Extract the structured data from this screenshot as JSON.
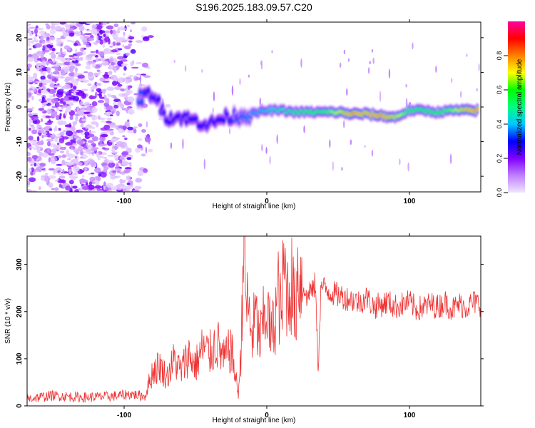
{
  "title": "S196.2025.183.09.57.C20",
  "chart_data": [
    {
      "type": "heatmap",
      "xlabel": "Height of straight line (km)",
      "ylabel": "Frequency (Hz)",
      "xlim": [
        -168,
        150
      ],
      "ylim": [
        -24.5,
        24.5
      ],
      "xticks": [
        -100,
        0,
        100
      ],
      "yticks": [
        -20,
        -10,
        0,
        10,
        20
      ],
      "colorbar": {
        "label": "Normalized spectral amplitude",
        "range": [
          0,
          1
        ],
        "ticks": [
          "0.0",
          "0.2",
          "0.4",
          "0.6",
          "0.8"
        ],
        "colors": [
          "#f0e6ff",
          "#c080ff",
          "#8000ff",
          "#0000ff",
          "#00c8ff",
          "#00ff80",
          "#00ff00",
          "#ffff00",
          "#ff8000",
          "#ff0000",
          "#ff00a0"
        ]
      },
      "ridge": [
        {
          "x": -90,
          "y": 2.5,
          "amp": 0.35
        },
        {
          "x": -80,
          "y": 4,
          "amp": 0.3
        },
        {
          "x": -70,
          "y": -3,
          "amp": 0.3
        },
        {
          "x": -60,
          "y": -3,
          "amp": 0.3
        },
        {
          "x": -50,
          "y": -4,
          "amp": 0.3
        },
        {
          "x": -40,
          "y": -5,
          "amp": 0.3
        },
        {
          "x": -30,
          "y": -3,
          "amp": 0.3
        },
        {
          "x": -20,
          "y": -2.5,
          "amp": 0.35
        },
        {
          "x": -10,
          "y": -2,
          "amp": 0.4
        },
        {
          "x": 0,
          "y": -1,
          "amp": 0.45
        },
        {
          "x": 10,
          "y": -1,
          "amp": 0.5
        },
        {
          "x": 20,
          "y": -1.5,
          "amp": 0.55
        },
        {
          "x": 30,
          "y": -1.5,
          "amp": 0.6
        },
        {
          "x": 40,
          "y": -1.5,
          "amp": 0.6
        },
        {
          "x": 50,
          "y": -1.5,
          "amp": 0.7
        },
        {
          "x": 60,
          "y": -2,
          "amp": 0.85
        },
        {
          "x": 70,
          "y": -2,
          "amp": 0.8
        },
        {
          "x": 80,
          "y": -2.5,
          "amp": 0.85
        },
        {
          "x": 90,
          "y": -3,
          "amp": 0.75
        },
        {
          "x": 100,
          "y": -1,
          "amp": 0.6
        },
        {
          "x": 110,
          "y": -1,
          "amp": 0.6
        },
        {
          "x": 120,
          "y": -1.5,
          "amp": 0.6
        },
        {
          "x": 130,
          "y": -1,
          "amp": 0.65
        },
        {
          "x": 140,
          "y": -1,
          "amp": 0.8
        },
        {
          "x": 148,
          "y": -1,
          "amp": 0.85
        }
      ]
    },
    {
      "type": "line",
      "xlabel": "Height of straight line (km)",
      "ylabel": "SNR (10 * v/v)",
      "xlim": [
        -168,
        150
      ],
      "ylim": [
        0,
        360
      ],
      "xticks": [
        -100,
        0,
        100
      ],
      "yticks": [
        0,
        100,
        200,
        300
      ],
      "line_color": "#ee3333",
      "series": [
        {
          "x": [
            -168,
            -150,
            -130,
            -110,
            -95,
            -85,
            -80,
            -75,
            -70,
            -65,
            -60,
            -55,
            -50,
            -45,
            -40,
            -35,
            -30,
            -25,
            -20,
            -18,
            -16,
            -15,
            -14,
            -12,
            -10,
            -8,
            -5,
            -2,
            0,
            3,
            5,
            8,
            10,
            12,
            15,
            17,
            20,
            22,
            24,
            26,
            28,
            30,
            32,
            34,
            36,
            38,
            40,
            45,
            50,
            55,
            60,
            65,
            70,
            75,
            80,
            85,
            90,
            95,
            100,
            105,
            110,
            115,
            120,
            125,
            130,
            135,
            140,
            145,
            150
          ],
          "y": [
            15,
            22,
            18,
            20,
            25,
            20,
            60,
            70,
            50,
            80,
            60,
            90,
            70,
            100,
            90,
            110,
            80,
            100,
            20,
            90,
            355,
            200,
            180,
            150,
            120,
            160,
            110,
            150,
            170,
            120,
            140,
            200,
            150,
            240,
            190,
            220,
            160,
            250,
            210,
            260,
            220,
            250,
            240,
            260,
            80,
            255,
            250,
            240,
            235,
            230,
            225,
            220,
            230,
            210,
            215,
            220,
            210,
            215,
            220,
            205,
            210,
            215,
            210,
            220,
            205,
            215,
            210,
            220,
            215
          ]
        }
      ]
    }
  ]
}
